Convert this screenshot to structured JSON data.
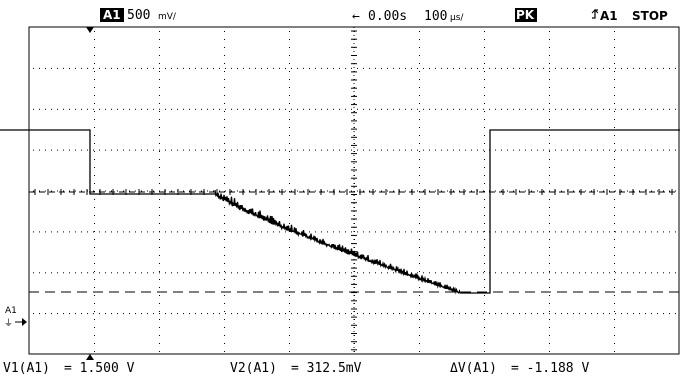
{
  "header": {
    "channel_badge": "A1",
    "volts_per_div": "500",
    "volts_unit_glyph": "mV/",
    "timebase_arrow": "←",
    "timebase_offset": "0.00s",
    "time_per_div": "100",
    "time_unit_glyph": "µs/",
    "peak_badge": "PK",
    "trigger_source": "A1",
    "run_status": "STOP"
  },
  "markers": {
    "channel_label": "A1",
    "ground_glyph": "⏚"
  },
  "readouts": {
    "v1_label": "V1(A1)",
    "v1_value": "= 1.500 V",
    "v2_label": "V2(A1)",
    "v2_value": "= 312.5mV",
    "dv_label": "ΔV(A1)",
    "dv_value": "= -1.188 V"
  },
  "colors": {
    "trace": "#000000",
    "grid": "#000000",
    "background": "#ffffff"
  },
  "icons": {
    "trigger": "trigger-edge-icon",
    "ground": "ground-icon"
  }
}
